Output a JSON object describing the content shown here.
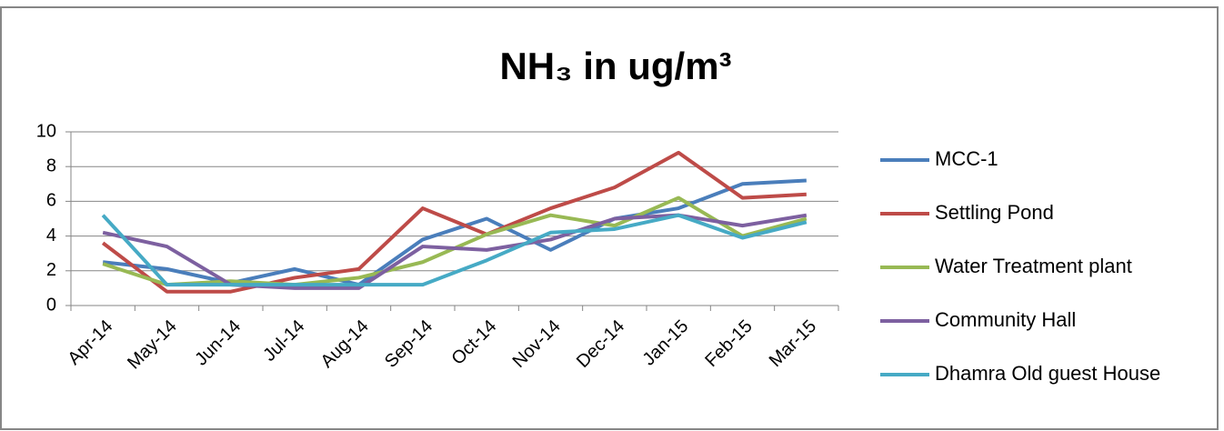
{
  "chart_data": {
    "type": "line",
    "title": "NH₃ in ug/m³",
    "categories": [
      "Apr-14",
      "May-14",
      "Jun-14",
      "Jul-14",
      "Aug-14",
      "Sep-14",
      "Oct-14",
      "Nov-14",
      "Dec-14",
      "Jan-15",
      "Feb-15",
      "Mar-15"
    ],
    "series": [
      {
        "name": "MCC-1",
        "color": "#4a7ebb",
        "values": [
          2.5,
          2.1,
          1.3,
          2.1,
          1.2,
          3.8,
          5.0,
          3.2,
          5.0,
          5.6,
          7.0,
          7.2
        ]
      },
      {
        "name": "Settling Pond",
        "color": "#be4b48",
        "values": [
          3.6,
          0.8,
          0.8,
          1.6,
          2.1,
          5.6,
          4.1,
          5.6,
          6.8,
          8.8,
          6.2,
          6.4
        ]
      },
      {
        "name": "Water Treatment plant",
        "color": "#98b954",
        "values": [
          2.4,
          1.2,
          1.4,
          1.2,
          1.6,
          2.5,
          4.1,
          5.2,
          4.6,
          6.2,
          4.0,
          5.0
        ]
      },
      {
        "name": "Community Hall",
        "color": "#7d60a0",
        "values": [
          4.2,
          3.4,
          1.2,
          1.0,
          1.0,
          3.4,
          3.2,
          3.8,
          5.0,
          5.2,
          4.6,
          5.2
        ]
      },
      {
        "name": "Dhamra Old guest House",
        "color": "#46aac5",
        "values": [
          5.2,
          1.2,
          1.2,
          1.2,
          1.2,
          1.2,
          2.6,
          4.2,
          4.4,
          5.2,
          3.9,
          4.8
        ]
      }
    ],
    "ylim": [
      0,
      10
    ],
    "yticks": [
      0,
      2,
      4,
      6,
      8,
      10
    ],
    "grid": true,
    "legend": "right"
  }
}
